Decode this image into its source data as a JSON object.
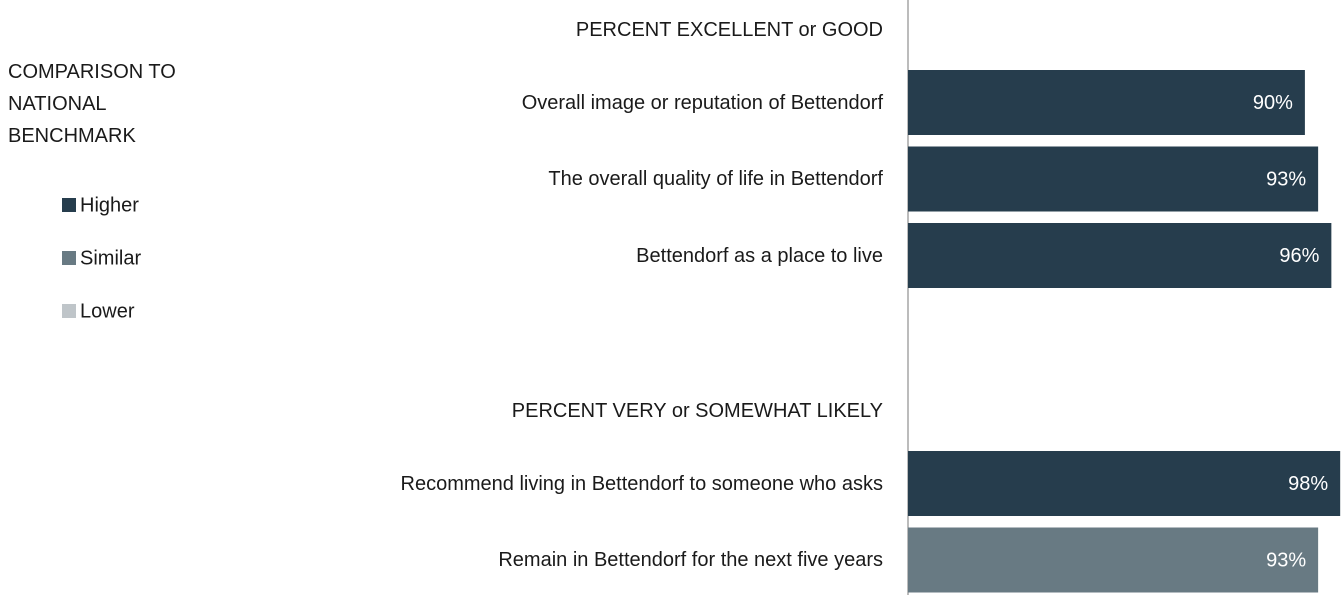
{
  "chart_data": {
    "type": "bar",
    "xlim": [
      0,
      100
    ],
    "legend": {
      "title": "COMPARISON TO NATIONAL BENCHMARK",
      "items": [
        {
          "name": "Higher",
          "color": "#263d4d"
        },
        {
          "name": "Similar",
          "color": "#687a83"
        },
        {
          "name": "Lower",
          "color": "#bfc5c9"
        }
      ]
    },
    "groups": [
      {
        "title": "PERCENT EXCELLENT or GOOD",
        "categories": [
          "Overall image or reputation of Bettendorf",
          "The overall quality of life in Bettendorf",
          "Bettendorf as a place to live"
        ],
        "values": [
          90,
          93,
          96
        ],
        "value_labels": [
          "90%",
          "93%",
          "96%"
        ],
        "colors": [
          "#263d4d",
          "#263d4d",
          "#263d4d"
        ]
      },
      {
        "title": "PERCENT VERY or SOMEWHAT LIKELY",
        "categories": [
          "Recommend living in Bettendorf to someone who asks",
          "Remain in Bettendorf for the next five years"
        ],
        "values": [
          98,
          93
        ],
        "value_labels": [
          "98%",
          "93%"
        ],
        "colors": [
          "#263d4d",
          "#687a83"
        ]
      }
    ]
  }
}
